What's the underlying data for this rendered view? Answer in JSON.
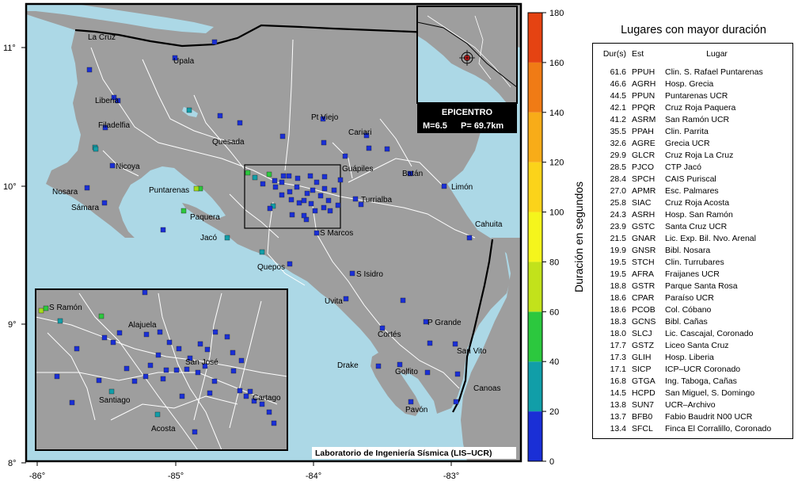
{
  "map": {
    "longitude_ticks": [
      "-86°",
      "-85°",
      "-84°",
      "-83°"
    ],
    "latitude_ticks": [
      "11°",
      "10°",
      "9°",
      "8°"
    ],
    "credit": "Laboratorio de Ingeniería Sísmica (LIS–UCR)",
    "colors": {
      "sea": "#acd8e6",
      "land": "#9e9e9e",
      "border": "#000000",
      "roads": "#ffffff"
    },
    "places": [
      {
        "name": "La Cruz"
      },
      {
        "name": "Upala"
      },
      {
        "name": "Liberia"
      },
      {
        "name": "Filadelfia"
      },
      {
        "name": "Quesada"
      },
      {
        "name": "Pt Viejo"
      },
      {
        "name": "Cariari"
      },
      {
        "name": "Nicoya"
      },
      {
        "name": "Guápiles"
      },
      {
        "name": "Batán"
      },
      {
        "name": "Limón"
      },
      {
        "name": "Nosara"
      },
      {
        "name": "Puntarenas"
      },
      {
        "name": "Turrialba"
      },
      {
        "name": "Sámara"
      },
      {
        "name": "Paquera"
      },
      {
        "name": "Cahuita"
      },
      {
        "name": "Jacó"
      },
      {
        "name": "S Marcos"
      },
      {
        "name": "Quepos"
      },
      {
        "name": "S Isidro"
      },
      {
        "name": "Uvita"
      },
      {
        "name": "P Grande"
      },
      {
        "name": "Cortés"
      },
      {
        "name": "San Vito"
      },
      {
        "name": "Drake"
      },
      {
        "name": "Golfito"
      },
      {
        "name": "Canoas"
      },
      {
        "name": "Pavón"
      }
    ]
  },
  "inset_detail": {
    "places": [
      {
        "name": "S Ramón"
      },
      {
        "name": "Alajuela"
      },
      {
        "name": "San José"
      },
      {
        "name": "Cartago"
      },
      {
        "name": "Santiago"
      },
      {
        "name": "Acosta"
      }
    ]
  },
  "epicenter": {
    "title": "EPICENTRO",
    "magnitude": "M=6.5",
    "depth": "P= 69.7km"
  },
  "colorbar": {
    "label": "Duración en segundos",
    "ticks": [
      "0",
      "20",
      "40",
      "60",
      "80",
      "100",
      "120",
      "140",
      "160",
      "180"
    ],
    "colors": [
      "#1a2fd6",
      "#119ea8",
      "#2cc83e",
      "#c2e21b",
      "#f5f51c",
      "#fbd31a",
      "#f8ac18",
      "#f07b15",
      "#e54312"
    ]
  },
  "table": {
    "title": "Lugares con mayor duración",
    "headers": {
      "dur": "Dur(s)",
      "est": "Est",
      "lugar": "Lugar"
    },
    "rows": [
      {
        "dur": "61.6",
        "est": "PPUH",
        "lugar": "Clin. S. Rafael Puntarenas"
      },
      {
        "dur": "46.6",
        "est": "AGRH",
        "lugar": "Hosp. Grecia"
      },
      {
        "dur": "44.5",
        "est": "PPUN",
        "lugar": "Puntarenas UCR"
      },
      {
        "dur": "42.1",
        "est": "PPQR",
        "lugar": "Cruz Roja Paquera"
      },
      {
        "dur": "41.2",
        "est": "ASRM",
        "lugar": "San Ramón UCR"
      },
      {
        "dur": "35.5",
        "est": "PPAH",
        "lugar": "Clin. Parrita"
      },
      {
        "dur": "32.6",
        "est": "AGRE",
        "lugar": "Grecia UCR"
      },
      {
        "dur": "29.9",
        "est": "GLCR",
        "lugar": "Cruz Roja La Cruz"
      },
      {
        "dur": "28.5",
        "est": "PJCO",
        "lugar": "CTP Jacó"
      },
      {
        "dur": "28.4",
        "est": "SPCH",
        "lugar": "CAIS Puriscal"
      },
      {
        "dur": "27.0",
        "est": "APMR",
        "lugar": "Esc. Palmares"
      },
      {
        "dur": "25.8",
        "est": "SIAC",
        "lugar": "Cruz Roja Acosta"
      },
      {
        "dur": "24.3",
        "est": "ASRH",
        "lugar": "Hosp. San Ramón"
      },
      {
        "dur": "23.9",
        "est": "GSTC",
        "lugar": "Santa Cruz UCR"
      },
      {
        "dur": "21.5",
        "est": "GNAR",
        "lugar": "Lic. Exp. Bil. Nvo. Arenal"
      },
      {
        "dur": "19.9",
        "est": "GNSR",
        "lugar": "Bibl. Nosara"
      },
      {
        "dur": "19.5",
        "est": "STCH",
        "lugar": "Clin. Turrubares"
      },
      {
        "dur": "19.5",
        "est": "AFRA",
        "lugar": "Fraijanes UCR"
      },
      {
        "dur": "18.8",
        "est": "GSTR",
        "lugar": "Parque Santa Rosa"
      },
      {
        "dur": "18.6",
        "est": "CPAR",
        "lugar": "Paraíso UCR"
      },
      {
        "dur": "18.6",
        "est": "PCOB",
        "lugar": "Col. Cóbano"
      },
      {
        "dur": "18.3",
        "est": "GCNS",
        "lugar": "Bibl. Cañas"
      },
      {
        "dur": "18.0",
        "est": "SLCJ",
        "lugar": "Lic. Cascajal, Coronado"
      },
      {
        "dur": "17.7",
        "est": "GSTZ",
        "lugar": "Liceo Santa Cruz"
      },
      {
        "dur": "17.3",
        "est": "GLIH",
        "lugar": "Hosp. Liberia"
      },
      {
        "dur": "17.1",
        "est": "SICP",
        "lugar": "ICP–UCR Coronado"
      },
      {
        "dur": "16.8",
        "est": "GTGA",
        "lugar": "Ing. Taboga, Cañas"
      },
      {
        "dur": "14.5",
        "est": "HCPD",
        "lugar": "San Miguel, S. Domingo"
      },
      {
        "dur": "13.8",
        "est": "SUN7",
        "lugar": "UCR–Archivo"
      },
      {
        "dur": "13.7",
        "est": "BFB0",
        "lugar": "Fabio Baudrit N00 UCR"
      },
      {
        "dur": "13.4",
        "est": "SFCL",
        "lugar": "Finca El Corralillo, Coronado"
      }
    ]
  }
}
